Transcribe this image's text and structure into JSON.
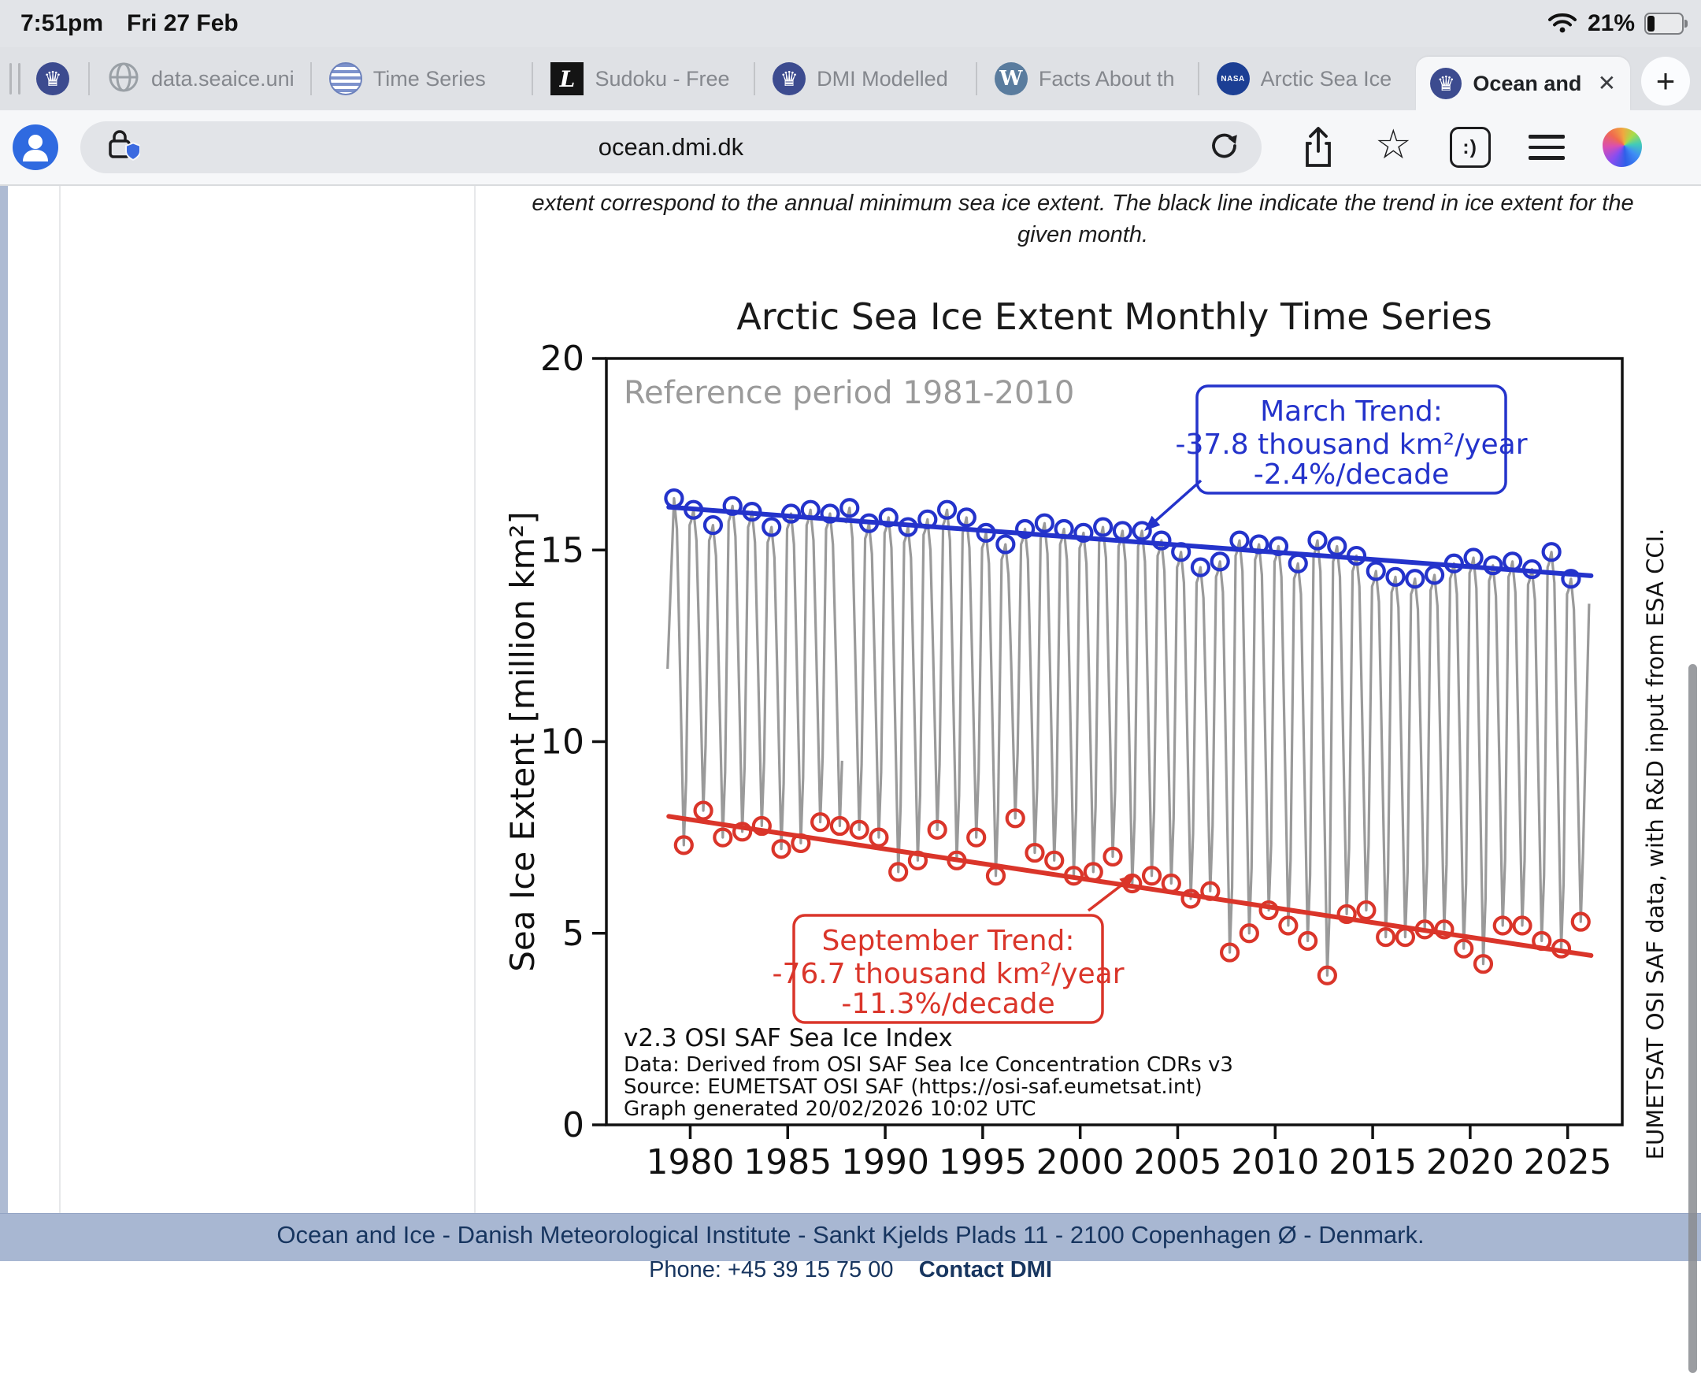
{
  "status_bar": {
    "time": "7:51pm",
    "date": "Fri 27 Feb",
    "battery": "21%",
    "icons": [
      "wifi-icon",
      "battery-icon"
    ]
  },
  "tab_bar": {
    "tabs": [
      {
        "label": "",
        "icon": "dmi-crown",
        "pinned": true
      },
      {
        "label": "data.seaice.uni",
        "icon": "globe"
      },
      {
        "label": "Time Series",
        "icon": "sea-globe"
      },
      {
        "label": "Sudoku - Free",
        "icon": "letter-l"
      },
      {
        "label": "DMI Modelled",
        "icon": "dmi-crown"
      },
      {
        "label": "Facts About th",
        "icon": "wordpress"
      },
      {
        "label": "Arctic Sea Ice",
        "icon": "nasa"
      },
      {
        "label": "Ocean and",
        "icon": "dmi-crown",
        "active": true
      }
    ],
    "nasa_text": "NASA",
    "wordpress_text": "W",
    "sudoku_text": "L",
    "close_label": "✕",
    "new_tab_label": "+"
  },
  "toolbar": {
    "url": "ocean.dmi.dk",
    "icons": [
      "profile-avatar",
      "privacy-lock-shield",
      "reload",
      "share",
      "favorite-star",
      "feedback-smiley",
      "menu",
      "copilot"
    ],
    "smiley_text": ":)",
    "star_glyph": "☆"
  },
  "page": {
    "intro_line1": "extent correspond to the annual minimum sea ice extent. The black line indicate the trend in ice extent for the",
    "intro_line2": "given month."
  },
  "footer": {
    "line1": "Ocean and Ice  -  Danish Meteorological Institute  -  Sankt Kjelds Plads 11   -  2100 Copenhagen Ø  -  Denmark.",
    "phone": "Phone: +45 39 15 75 00",
    "contact": "Contact DMI"
  },
  "chart_data": {
    "type": "line",
    "title": "Arctic Sea Ice Extent Monthly Time Series",
    "subtitle": "Reference period 1981-2010",
    "ylabel": "Sea Ice Extent [million km²]",
    "right_caption": "EUMETSAT OSI SAF data, with R&D input from ESA CCI.",
    "xticks": [
      1980,
      1985,
      1990,
      1995,
      2000,
      2005,
      2010,
      2015,
      2020,
      2025
    ],
    "yticks": [
      0,
      5,
      10,
      15,
      20
    ],
    "ylim": [
      0,
      20
    ],
    "xlim": [
      1975.7,
      2027.8
    ],
    "grid": false,
    "legend": "none",
    "monthly_line_color": "#9a9a9a",
    "monthly_line": {
      "start": {
        "year": 1978.84,
        "value": 11.9
      },
      "end": {
        "year": 2026.1,
        "value": 13.6
      },
      "gap_year": 1987.88
    },
    "series_years": [
      1979,
      1980,
      1981,
      1982,
      1983,
      1984,
      1985,
      1986,
      1987,
      1988,
      1989,
      1990,
      1991,
      1992,
      1993,
      1994,
      1995,
      1996,
      1997,
      1998,
      1999,
      2000,
      2001,
      2002,
      2003,
      2004,
      2005,
      2006,
      2007,
      2008,
      2009,
      2010,
      2011,
      2012,
      2013,
      2014,
      2015,
      2016,
      2017,
      2018,
      2019,
      2020,
      2021,
      2022,
      2023,
      2024,
      2025
    ],
    "series": [
      {
        "name": "March",
        "color": "#2433cb",
        "values": [
          16.35,
          16.05,
          15.65,
          16.15,
          16.0,
          15.6,
          15.95,
          16.05,
          15.95,
          16.1,
          15.7,
          15.85,
          15.6,
          15.8,
          16.05,
          15.85,
          15.45,
          15.15,
          15.55,
          15.7,
          15.55,
          15.45,
          15.6,
          15.5,
          15.5,
          15.25,
          14.95,
          14.55,
          14.7,
          15.25,
          15.15,
          15.1,
          14.65,
          15.25,
          15.1,
          14.85,
          14.45,
          14.3,
          14.25,
          14.35,
          14.65,
          14.8,
          14.6,
          14.7,
          14.5,
          14.95,
          14.25
        ]
      },
      {
        "name": "September",
        "color": "#da352a",
        "values": [
          7.3,
          8.2,
          7.5,
          7.65,
          7.8,
          7.2,
          7.35,
          7.9,
          7.8,
          7.7,
          7.5,
          6.6,
          6.9,
          7.7,
          6.9,
          7.5,
          6.5,
          8.0,
          7.1,
          6.9,
          6.5,
          6.6,
          7.0,
          6.3,
          6.5,
          6.3,
          5.9,
          6.1,
          4.5,
          5.0,
          5.6,
          5.2,
          4.8,
          3.9,
          5.5,
          5.6,
          4.9,
          4.9,
          5.1,
          5.1,
          4.6,
          4.2,
          5.2,
          5.2,
          4.8,
          4.6,
          5.3
        ]
      }
    ],
    "trend_lines": [
      {
        "name": "March trend",
        "color": "#2433cb",
        "x1": 1978.9,
        "y1": 16.12,
        "x2": 2026.2,
        "y2": 14.33
      },
      {
        "name": "September trend",
        "color": "#da352a",
        "x1": 1978.9,
        "y1": 8.05,
        "x2": 2026.2,
        "y2": 4.42
      }
    ],
    "annotations": [
      {
        "name": "march-trend-box",
        "color": "#2433cb",
        "lines": [
          "March Trend:",
          "-37.8 thousand km²/year",
          "-2.4%/decade"
        ]
      },
      {
        "name": "september-trend-box",
        "color": "#da352a",
        "lines": [
          "September Trend:",
          "-76.7 thousand km²/year",
          "-11.3%/decade"
        ]
      }
    ],
    "source_lines": [
      "v2.3 OSI SAF Sea Ice Index",
      "Data: Derived from OSI SAF Sea Ice Concentration CDRs v3",
      "Source: EUMETSAT OSI SAF (https://osi-saf.eumetsat.int)",
      "Graph generated 20/02/2026 10:02 UTC"
    ]
  }
}
